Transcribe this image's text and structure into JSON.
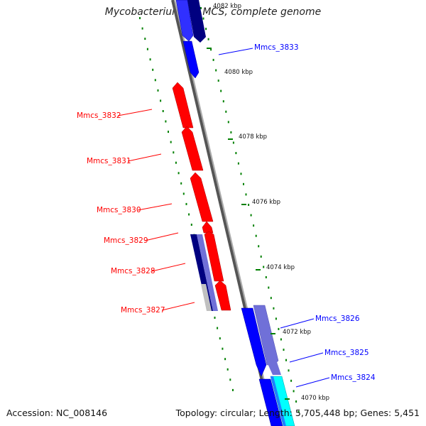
{
  "title": "Mycobacterium sp. MCS, complete genome",
  "footer": {
    "accession": "Accession: NC_008146",
    "summary": "Topology: circular; Length: 5,705,448 bp; Genes: 5,451"
  },
  "colors": {
    "reverse_gene": "#ff0000",
    "forward_gene": "#0000ff",
    "dark_gene": "#000080",
    "light_gene": "#7070d8",
    "cyan_gene": "#00ffff",
    "tick_green": "#008000",
    "backbone": "#808080"
  },
  "ticks": [
    "4082 kbp",
    "4080 kbp",
    "4078 kbp",
    "4076 kbp",
    "4074 kbp",
    "4072 kbp",
    "4070 kbp"
  ],
  "genes_reverse": [
    "Mmcs_3832",
    "Mmcs_3831",
    "Mmcs_3830",
    "Mmcs_3829",
    "Mmcs_3828",
    "Mmcs_3827"
  ],
  "genes_forward": [
    "Mmcs_3833",
    "Mmcs_3826",
    "Mmcs_3825",
    "Mmcs_3824"
  ]
}
